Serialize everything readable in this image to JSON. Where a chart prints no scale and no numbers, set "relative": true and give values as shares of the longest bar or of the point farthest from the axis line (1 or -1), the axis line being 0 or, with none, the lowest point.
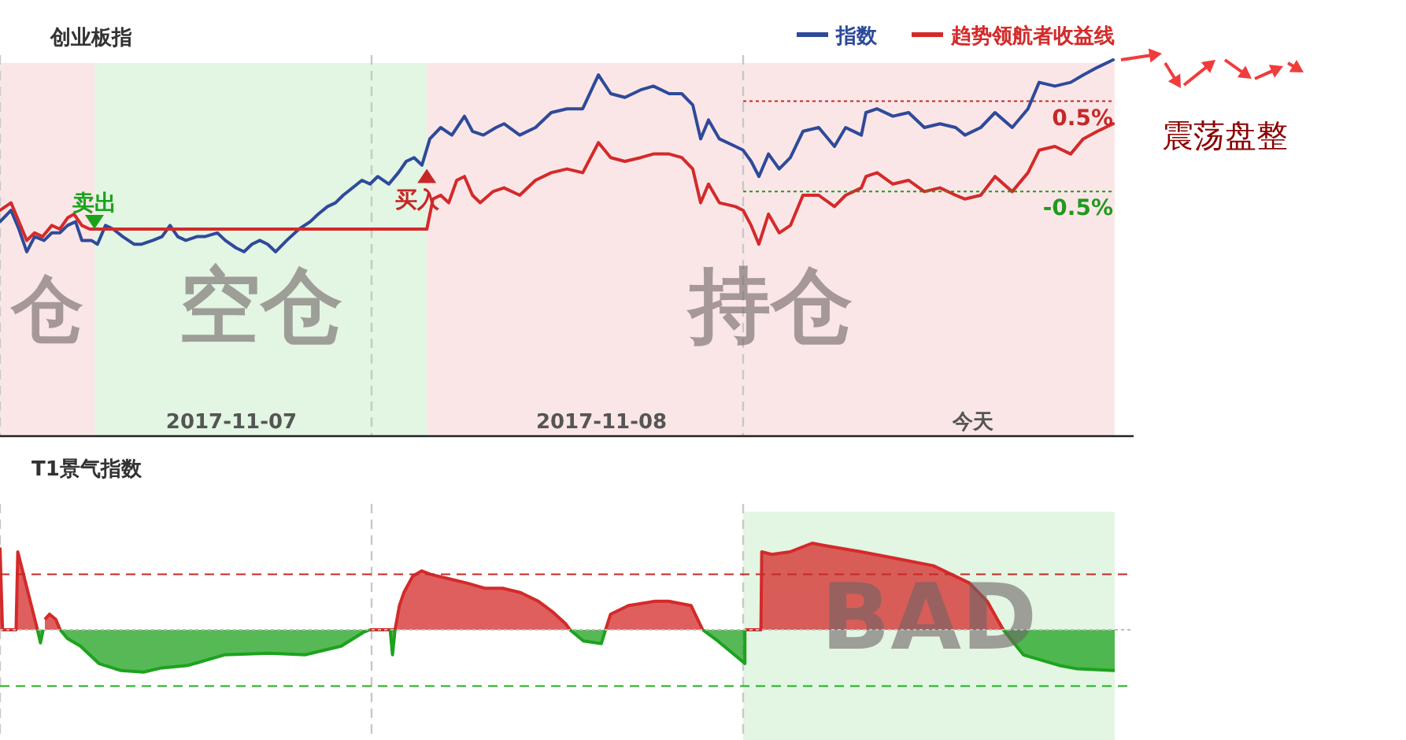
{
  "chart_data": [
    {
      "type": "line",
      "title": "创业板指",
      "relative": true,
      "xlim": [
        "2017-11-07T00:00",
        "2017-11-10T00:00"
      ],
      "tick_labels": "x",
      "legend": "top right",
      "xticks": [
        {
          "value": "2017-11-07T14:57",
          "label": "2017-11-07"
        },
        {
          "value": "2017-11-08T14:51",
          "label": "2017-11-08"
        },
        {
          "value": "2017-11-09T14:51",
          "label": "今天"
        }
      ],
      "series": [
        {
          "name": "指数",
          "color": "#2e4a9a",
          "x": [
            "2017-11-07T00:00",
            "2017-11-07T00:43",
            "2017-11-07T01:13",
            "2017-11-07T01:44",
            "2017-11-07T02:14",
            "2017-11-07T02:51",
            "2017-11-07T03:21",
            "2017-11-07T03:52",
            "2017-11-07T04:22",
            "2017-11-07T04:53",
            "2017-11-07T05:17",
            "2017-11-07T05:54",
            "2017-11-07T06:18",
            "2017-11-07T06:49",
            "2017-11-07T07:19",
            "2017-11-07T07:56",
            "2017-11-07T08:39",
            "2017-11-07T09:09",
            "2017-11-07T09:52",
            "2017-11-07T10:28",
            "2017-11-07T10:59",
            "2017-11-07T11:29",
            "2017-11-07T12:00",
            "2017-11-07T12:43",
            "2017-11-07T13:13",
            "2017-11-07T14:02",
            "2017-11-07T14:33",
            "2017-11-07T15:15",
            "2017-11-07T15:46",
            "2017-11-07T16:16",
            "2017-11-07T16:47",
            "2017-11-07T17:17",
            "2017-11-07T17:48",
            "2017-11-07T18:31",
            "2017-11-07T19:19",
            "2017-11-07T20:02",
            "2017-11-07T20:33",
            "2017-11-07T21:09",
            "2017-11-07T21:40",
            "2017-11-07T22:10",
            "2017-11-07T23:23",
            "2017-11-07T23:54",
            "2017-11-08T00:24",
            "2017-11-08T01:07",
            "2017-11-08T01:44",
            "2017-11-08T02:14",
            "2017-11-08T02:45",
            "2017-11-08T03:15",
            "2017-11-08T03:46",
            "2017-11-08T04:28",
            "2017-11-08T05:11",
            "2017-11-08T06:00",
            "2017-11-08T06:31",
            "2017-11-08T07:13",
            "2017-11-08T08:02",
            "2017-11-08T08:33",
            "2017-11-08T09:34",
            "2017-11-08T10:35",
            "2017-11-08T11:36",
            "2017-11-08T12:37",
            "2017-11-08T13:38",
            "2017-11-08T14:39",
            "2017-11-08T15:27",
            "2017-11-08T16:22",
            "2017-11-08T17:23",
            "2017-11-08T18:12",
            "2017-11-08T19:13",
            "2017-11-08T20:02",
            "2017-11-08T20:45",
            "2017-11-08T21:15",
            "2017-11-08T21:46",
            "2017-11-08T22:28",
            "2017-11-08T23:30",
            "2017-11-09T00:00",
            "2017-11-09T00:31",
            "2017-11-09T01:01",
            "2017-11-09T01:38",
            "2017-11-09T02:20",
            "2017-11-09T03:03",
            "2017-11-09T03:52",
            "2017-11-09T04:53",
            "2017-11-09T05:54",
            "2017-11-09T06:37",
            "2017-11-09T07:38",
            "2017-11-09T07:56",
            "2017-11-09T08:39",
            "2017-11-09T09:40",
            "2017-11-09T10:41",
            "2017-11-09T11:42",
            "2017-11-09T12:43",
            "2017-11-09T13:44",
            "2017-11-09T14:20",
            "2017-11-09T15:21",
            "2017-11-09T16:16",
            "2017-11-09T17:23",
            "2017-11-09T18:24",
            "2017-11-09T19:07",
            "2017-11-09T20:08",
            "2017-11-09T21:09",
            "2017-11-09T21:58",
            "2017-11-09T22:53",
            "2017-11-09T23:54"
          ],
          "values": [
            0.57,
            0.6,
            0.55,
            0.49,
            0.53,
            0.52,
            0.54,
            0.54,
            0.56,
            0.57,
            0.52,
            0.52,
            0.51,
            0.56,
            0.55,
            0.53,
            0.51,
            0.51,
            0.52,
            0.53,
            0.56,
            0.53,
            0.52,
            0.53,
            0.53,
            0.54,
            0.52,
            0.5,
            0.49,
            0.51,
            0.52,
            0.51,
            0.49,
            0.52,
            0.55,
            0.57,
            0.59,
            0.61,
            0.62,
            0.64,
            0.68,
            0.67,
            0.69,
            0.67,
            0.7,
            0.73,
            0.74,
            0.72,
            0.79,
            0.82,
            0.8,
            0.85,
            0.81,
            0.8,
            0.82,
            0.83,
            0.8,
            0.82,
            0.86,
            0.87,
            0.87,
            0.96,
            0.91,
            0.9,
            0.92,
            0.93,
            0.91,
            0.91,
            0.88,
            0.79,
            0.84,
            0.79,
            0.77,
            0.76,
            0.73,
            0.69,
            0.75,
            0.71,
            0.74,
            0.81,
            0.82,
            0.77,
            0.82,
            0.8,
            0.86,
            0.87,
            0.85,
            0.86,
            0.82,
            0.83,
            0.82,
            0.8,
            0.82,
            0.86,
            0.82,
            0.87,
            0.94,
            0.93,
            0.94,
            0.96,
            0.98,
            1
          ]
        },
        {
          "name": "趋势领航者收益线",
          "color": "#d42a2a",
          "x": [
            "2017-11-07T00:00",
            "2017-11-07T00:43",
            "2017-11-07T01:13",
            "2017-11-07T01:44",
            "2017-11-07T02:14",
            "2017-11-07T02:45",
            "2017-11-07T03:21",
            "2017-11-07T03:52",
            "2017-11-07T04:22",
            "2017-11-07T04:47",
            "2017-11-07T05:17",
            "2017-11-07T05:48",
            "2017-11-07T06:06",
            "2017-11-08T03:34",
            "2017-11-08T03:58",
            "2017-11-08T04:28",
            "2017-11-08T04:59",
            "2017-11-08T05:30",
            "2017-11-08T06:00",
            "2017-11-08T06:31",
            "2017-11-08T07:01",
            "2017-11-08T07:50",
            "2017-11-08T08:33",
            "2017-11-08T09:34",
            "2017-11-08T10:35",
            "2017-11-08T11:36",
            "2017-11-08T12:37",
            "2017-11-08T13:38",
            "2017-11-08T14:39",
            "2017-11-08T15:27",
            "2017-11-08T16:22",
            "2017-11-08T17:23",
            "2017-11-08T18:12",
            "2017-11-08T19:13",
            "2017-11-08T20:02",
            "2017-11-08T20:45",
            "2017-11-08T21:15",
            "2017-11-08T21:46",
            "2017-11-08T22:28",
            "2017-11-08T23:30",
            "2017-11-09T00:00",
            "2017-11-09T00:31",
            "2017-11-09T01:01",
            "2017-11-09T01:38",
            "2017-11-09T02:20",
            "2017-11-09T03:03",
            "2017-11-09T03:52",
            "2017-11-09T04:53",
            "2017-11-09T05:54",
            "2017-11-09T06:37",
            "2017-11-09T07:38",
            "2017-11-09T07:56",
            "2017-11-09T08:39",
            "2017-11-09T09:40",
            "2017-11-09T10:41",
            "2017-11-09T11:42",
            "2017-11-09T12:43",
            "2017-11-09T13:44",
            "2017-11-09T14:20",
            "2017-11-09T15:21",
            "2017-11-09T16:16",
            "2017-11-09T17:23",
            "2017-11-09T18:24",
            "2017-11-09T19:07",
            "2017-11-09T20:08",
            "2017-11-09T21:09",
            "2017-11-09T21:58",
            "2017-11-09T22:53",
            "2017-11-09T23:54"
          ],
          "values": [
            0.6,
            0.62,
            0.57,
            0.52,
            0.54,
            0.53,
            0.56,
            0.55,
            0.58,
            0.59,
            0.56,
            0.55,
            0.55,
            0.55,
            0.63,
            0.64,
            0.62,
            0.68,
            0.69,
            0.64,
            0.62,
            0.65,
            0.66,
            0.64,
            0.68,
            0.7,
            0.71,
            0.7,
            0.78,
            0.74,
            0.73,
            0.74,
            0.75,
            0.75,
            0.74,
            0.71,
            0.62,
            0.67,
            0.62,
            0.61,
            0.6,
            0.56,
            0.51,
            0.59,
            0.54,
            0.56,
            0.64,
            0.64,
            0.61,
            0.64,
            0.66,
            0.69,
            0.7,
            0.67,
            0.68,
            0.65,
            0.66,
            0.64,
            0.63,
            0.64,
            0.69,
            0.65,
            0.7,
            0.76,
            0.77,
            0.75,
            0.79,
            0.81,
            0.83
          ]
        }
      ],
      "ref_lines": [
        {
          "axis": "x",
          "value": "2017-11-07T00:00",
          "label": null,
          "color": "#c8c8c8",
          "line_style": "dashed"
        },
        {
          "axis": "x",
          "value": "2017-11-08T00:00",
          "label": null,
          "color": "#c8c8c8",
          "line_style": "dashed"
        },
        {
          "axis": "x",
          "value": "2017-11-09T00:00",
          "label": null,
          "color": "#c8c8c8",
          "line_style": "dashed"
        },
        {
          "axis": "y",
          "value": 0.89,
          "label": null,
          "color": "#c62828",
          "line_style": "dotted"
        },
        {
          "axis": "y",
          "value": 0.65,
          "label": null,
          "color": "#1f9a1f",
          "line_style": "dotted"
        }
      ],
      "bands": [
        {
          "axis": "x",
          "from": "2017-11-07T00:00",
          "to": "2017-11-07T06:06",
          "label": "仓",
          "color": "#fbe6e7"
        },
        {
          "axis": "x",
          "from": "2017-11-07T06:06",
          "to": "2017-11-08T03:34",
          "label": "空仓",
          "color": "#e3f5e3"
        },
        {
          "axis": "x",
          "from": "2017-11-08T03:34",
          "to": "2017-11-10T00:00",
          "label": "持仓",
          "color": "#fbe6e7"
        }
      ],
      "annotations": [
        {
          "text": "卖出",
          "x": "2017-11-07T06:06",
          "y": 0.55
        },
        {
          "text": "买入",
          "x": "2017-11-08T03:34",
          "y": 0.71
        },
        "0.5%",
        "-0.5%",
        "震荡盘整"
      ]
    },
    {
      "type": "area",
      "title": "T1景气指数",
      "relative": true,
      "xlim": [
        "2017-11-07T00:00",
        "2017-11-10T00:00"
      ],
      "tick_labels": false,
      "series": [
        {
          "color": "#d42a2a",
          "x": [
            "2017-11-07T00:00",
            "2017-11-07T00:10",
            "2017-11-07T01:02",
            "2017-11-07T01:09",
            "2017-11-07T02:25",
            null,
            "2017-11-07T02:54",
            "2017-11-07T03:12",
            "2017-11-07T03:36",
            "2017-11-07T03:53",
            null,
            "2017-11-07T23:53",
            "2017-11-08T01:31",
            "2017-11-08T01:48",
            "2017-11-08T02:05",
            "2017-11-08T02:40",
            "2017-11-08T03:14",
            "2017-11-08T03:49",
            "2017-11-08T05:00",
            "2017-11-08T06:09",
            "2017-11-08T07:18",
            "2017-11-08T08:28",
            "2017-11-08T09:37",
            "2017-11-08T10:47",
            "2017-11-08T11:40",
            "2017-11-08T12:32",
            "2017-11-08T12:49",
            null,
            "2017-11-08T15:07",
            "2017-11-08T15:26",
            "2017-11-08T16:35",
            "2017-11-08T18:19",
            "2017-11-08T19:12",
            "2017-11-08T20:38",
            "2017-11-08T21:23",
            null,
            "2017-11-09T00:07",
            "2017-11-09T01:09",
            "2017-11-09T01:12",
            "2017-11-09T01:51",
            "2017-11-09T03:01",
            "2017-11-09T04:28",
            "2017-11-09T05:20",
            "2017-11-09T07:39",
            "2017-11-09T09:58",
            "2017-11-09T12:17",
            "2017-11-09T14:37",
            "2017-11-09T15:46",
            "2017-11-09T16:48"
          ],
          "values": [
            0.95,
            0,
            0,
            0.9,
            0,
            null,
            0.12,
            0.18,
            0.12,
            0,
            null,
            0,
            0,
            0.28,
            0.43,
            0.62,
            0.68,
            0.64,
            0.59,
            0.54,
            0.48,
            0.48,
            0.43,
            0.33,
            0.21,
            0.07,
            0,
            null,
            0,
            0.18,
            0.28,
            0.33,
            0.33,
            0.28,
            0,
            null,
            0,
            0,
            0.9,
            0.87,
            0.9,
            1,
            0.97,
            0.9,
            0.82,
            0.74,
            0.54,
            0.33,
            0
          ]
        },
        {
          "color": "#1ea21e",
          "x": [
            "2017-11-07T02:25",
            "2017-11-07T02:37",
            "2017-11-07T02:47",
            null,
            "2017-11-07T03:53",
            "2017-11-07T04:21",
            "2017-11-07T05:12",
            "2017-11-07T06:23",
            "2017-11-07T07:49",
            "2017-11-07T09:16",
            "2017-11-07T10:26",
            "2017-11-07T12:10",
            "2017-11-07T14:30",
            "2017-11-07T17:24",
            "2017-11-07T19:42",
            "2017-11-07T22:02",
            "2017-11-07T23:28",
            "2017-11-07T23:53",
            null,
            "2017-11-08T01:12",
            "2017-11-08T01:21",
            "2017-11-08T01:31",
            null,
            "2017-11-08T12:49",
            "2017-11-08T13:41",
            "2017-11-08T14:50",
            "2017-11-08T15:07",
            null,
            "2017-11-08T21:23",
            "2017-11-08T22:22",
            "2017-11-09T00:07",
            "2017-11-09T00:07",
            null,
            "2017-11-09T16:48",
            "2017-11-09T18:06",
            "2017-11-09T20:24",
            "2017-11-09T21:35",
            "2017-11-10T00:00"
          ],
          "values": [
            0,
            -0.15,
            0,
            null,
            0,
            -0.1,
            -0.19,
            -0.39,
            -0.47,
            -0.49,
            -0.44,
            -0.41,
            -0.29,
            -0.27,
            -0.29,
            -0.19,
            -0.03,
            0,
            null,
            0,
            -0.29,
            0,
            null,
            0,
            -0.13,
            -0.16,
            0,
            null,
            0,
            -0.13,
            -0.39,
            0,
            null,
            0,
            -0.29,
            -0.41,
            -0.45,
            -0.47
          ]
        }
      ],
      "ref_lines": [
        {
          "axis": "x",
          "value": "2017-11-07T00:00",
          "label": null,
          "color": "#c8c8c8",
          "line_style": "dashed"
        },
        {
          "axis": "x",
          "value": "2017-11-08T00:00",
          "label": null,
          "color": "#c8c8c8",
          "line_style": "dashed"
        },
        {
          "axis": "x",
          "value": "2017-11-09T00:00",
          "label": null,
          "color": "#c8c8c8",
          "line_style": "dashed"
        },
        {
          "axis": "y",
          "value": 0,
          "label": null,
          "color": "#bbbbbb",
          "line_style": "dotted"
        },
        {
          "axis": "y",
          "value": 0.64,
          "label": null,
          "color": "#c62828",
          "line_style": "dashed"
        },
        {
          "axis": "y",
          "value": -0.65,
          "label": null,
          "color": "#1fb01f",
          "line_style": "dashed"
        }
      ],
      "bands": [
        {
          "axis": "x",
          "from": "2017-11-09T00:00",
          "to": "2017-11-10T00:00",
          "label": "BAD",
          "color": "#e3f5e3"
        }
      ]
    }
  ]
}
